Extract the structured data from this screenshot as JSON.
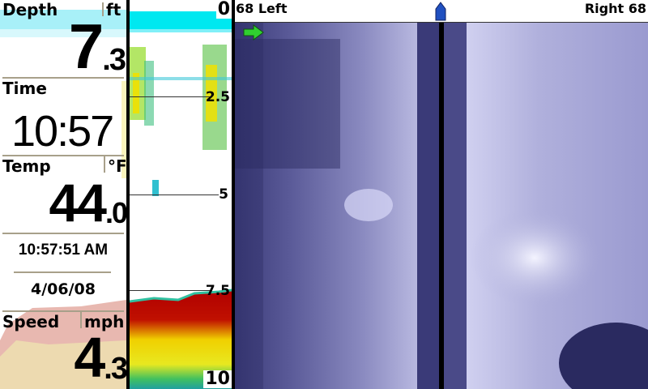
{
  "depth": {
    "label": "Depth",
    "unit": "ft",
    "value_int": "7",
    "value_dec": ".3"
  },
  "time": {
    "label": "Time",
    "value": "10:57"
  },
  "temp": {
    "label": "Temp",
    "unit": "°F",
    "value_int": "44",
    "value_dec": ".0"
  },
  "clock": "10:57:51 AM",
  "date": "4/06/08",
  "speed": {
    "label": "Speed",
    "unit": "mph",
    "value_int": "4",
    "value_dec": ".3"
  },
  "sonar": {
    "depth_scale": [
      "0",
      "2.5",
      "5",
      "7.5",
      "10"
    ],
    "bottom_depth_ft": 7.3,
    "colors": {
      "surface": "#00e8f0",
      "bottom": "#b00000",
      "mid": "#f0e000",
      "weak": "#20c0c0"
    }
  },
  "side_imaging": {
    "left_label": "68 Left",
    "right_label": "Right 68",
    "boat_icon": "boat-icon",
    "direction_icon": "green-arrow-right-icon",
    "colors": {
      "image": "#8f90c8",
      "dark": "#2a2a6a"
    }
  }
}
